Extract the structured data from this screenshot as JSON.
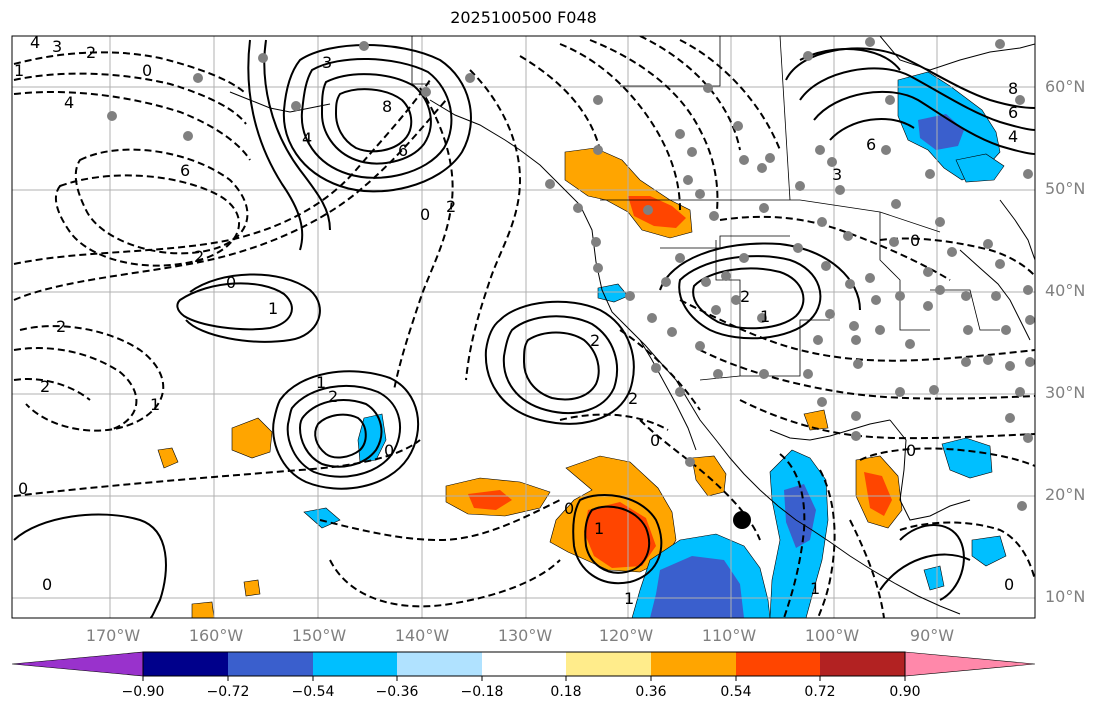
{
  "title": "2025100500 F048",
  "lat_labels": [
    "60°N",
    "50°N",
    "40°N",
    "30°N",
    "20°N",
    "10°N"
  ],
  "lon_labels": [
    "170°W",
    "160°W",
    "150°W",
    "140°W",
    "130°W",
    "120°W",
    "110°W",
    "100°W",
    "90°W"
  ],
  "colorbar": {
    "colors": [
      "#9932cc",
      "#00008b",
      "#3a5fcd",
      "#00bfff",
      "#b0e2ff",
      "#ffffff",
      "#ffec8b",
      "#ffa500",
      "#ff4500",
      "#b22222",
      "#ff88aa"
    ],
    "tick_labels": [
      "−0.90",
      "−0.72",
      "−0.54",
      "−0.36",
      "−0.18",
      "0.18",
      "0.36",
      "0.54",
      "0.72",
      "0.90"
    ]
  },
  "contour_labels": [
    "4",
    "3",
    "2",
    "1",
    "0",
    "4",
    "3",
    "8",
    "6",
    "4",
    "6",
    "2",
    "0",
    "2",
    "0",
    "1",
    "2",
    "2",
    "1",
    "2",
    "1",
    "2",
    "0",
    "0",
    "2",
    "0",
    "1",
    "2",
    "1",
    "0",
    "0",
    "1",
    "8",
    "6",
    "4",
    "6",
    "3",
    "0",
    "0",
    "0",
    "1"
  ],
  "legend_note": ""
}
